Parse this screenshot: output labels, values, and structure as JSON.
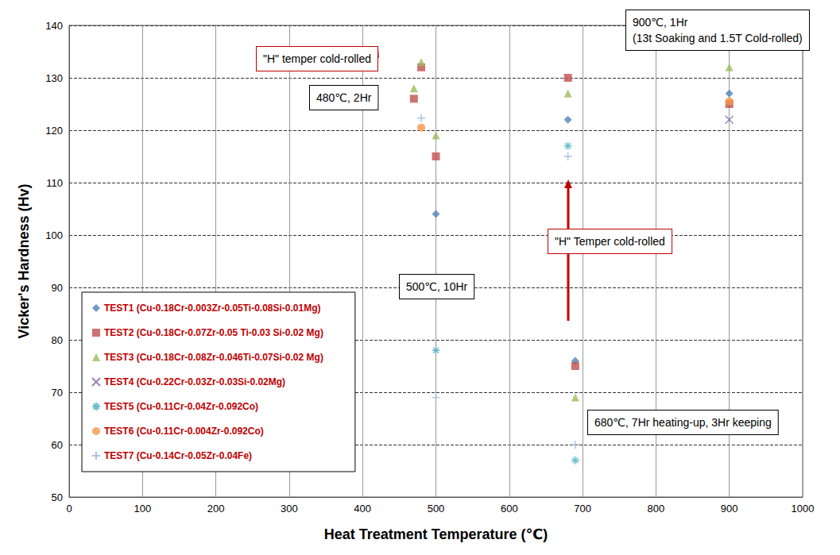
{
  "chart_data": {
    "type": "scatter",
    "x_label": "Heat Treatment Temperature (℃)",
    "y_label": "Vicker's Hardness (Hv)",
    "xlim": [
      0,
      1000
    ],
    "xticks": [
      0,
      100,
      200,
      300,
      400,
      500,
      600,
      700,
      800,
      900,
      1000
    ],
    "ylim": [
      50,
      140
    ],
    "yticks": [
      50,
      60,
      70,
      80,
      90,
      100,
      110,
      120,
      130,
      140
    ],
    "grid": true,
    "legend": "lower left",
    "series": [
      {
        "name": "TEST1 (Cu-0.18Cr-0.003Zr-0.05Ti-0.08Si-0.01Mg)",
        "color": "#4f81bd",
        "marker": "diamond",
        "x": [
          500,
          680,
          690,
          900
        ],
        "values": [
          104,
          122,
          76,
          127
        ]
      },
      {
        "name": "TEST2 (Cu-0.18Cr-0.07Zr-0.05 Ti-0.03 Si-0.02 Mg)",
        "color": "#c0504d",
        "marker": "square",
        "x": [
          470,
          480,
          500,
          680,
          690,
          900
        ],
        "values": [
          126,
          132,
          115,
          130,
          75,
          125
        ]
      },
      {
        "name": "TEST3 (Cu-0.18Cr-0.08Zr-0.046Ti-0.07Si-0.02 Mg)",
        "color": "#9bbb59",
        "marker": "triangle",
        "x": [
          470,
          480,
          500,
          680,
          690,
          900
        ],
        "values": [
          128,
          133,
          119,
          127,
          69,
          132
        ]
      },
      {
        "name": "TEST4 (Cu-0.22Cr-0.03Zr-0.03Si-0.02Mg)",
        "color": "#8064a2",
        "marker": "x",
        "x": [
          900
        ],
        "values": [
          122
        ]
      },
      {
        "name": "TEST5 (Cu-0.11Cr-0.04Zr-0.092Co)",
        "color": "#4bacc6",
        "marker": "asterisk",
        "x": [
          500,
          680,
          690
        ],
        "values": [
          78,
          117,
          57
        ]
      },
      {
        "name": "TEST6 (Cu-0.11Cr-0.004Zr-0.092Co)",
        "color": "#f79646",
        "marker": "circle",
        "x": [
          480,
          900
        ],
        "values": [
          120.5,
          125.5
        ]
      },
      {
        "name": "TEST7 (Cu-0.14Cr-0.05Zr-0.04Fe)",
        "color": "#95b3d7",
        "marker": "plus",
        "x": [
          480,
          500,
          680,
          690
        ],
        "values": [
          122.3,
          69,
          115,
          60
        ]
      }
    ],
    "annotations": [
      {
        "text": "900℃, 1Hr\n(13t Soaking and 1.5T Cold-rolled)",
        "color": "#000000"
      },
      {
        "text": "\"H\" temper cold-rolled",
        "color": "#c00000"
      },
      {
        "text": "480℃, 2Hr",
        "color": "#000000"
      },
      {
        "text": "500℃, 10Hr",
        "color": "#000000"
      },
      {
        "text": "\"H\" Temper cold-rolled",
        "color": "#c00000"
      },
      {
        "text": "680℃, 7Hr heating-up, 3Hr keeping",
        "color": "#000000"
      }
    ]
  }
}
